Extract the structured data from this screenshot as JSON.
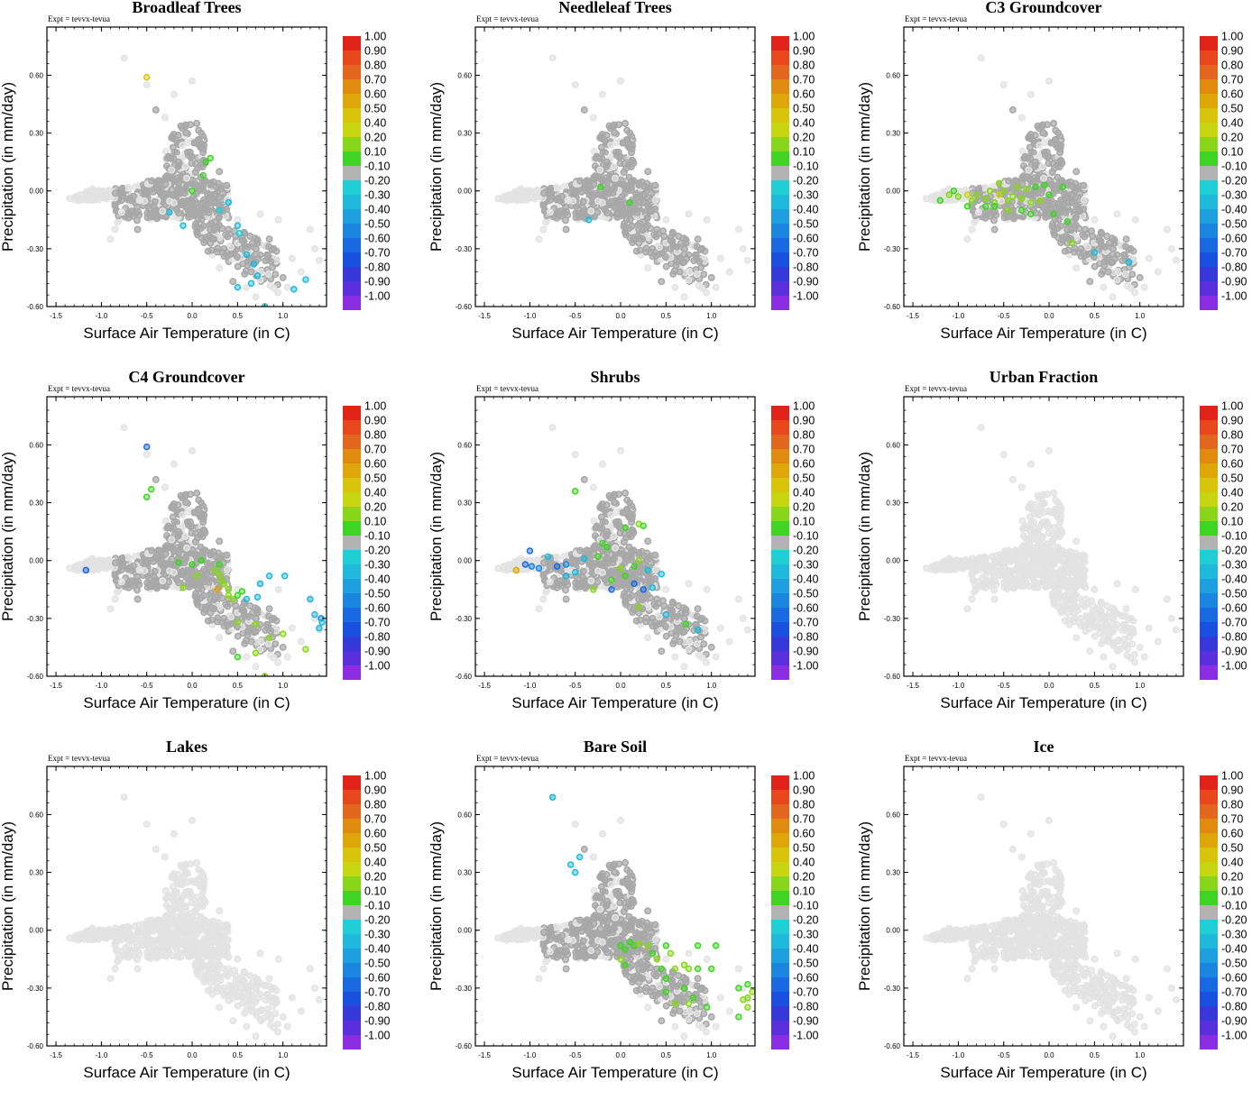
{
  "figure": {
    "expt_label": "Expt = tevvx-tevua",
    "xlabel": "Surface Air Temperature (in C)",
    "ylabel": "Precipitation (in mm/day)"
  },
  "chart_data": {
    "type": "scatter",
    "xlim": [
      -1.6,
      1.48
    ],
    "ylim": [
      -0.6,
      0.85
    ],
    "x_ticks": [
      -1.5,
      -1.0,
      -0.5,
      0.0,
      0.5,
      1.0
    ],
    "x_tick_labels": [
      "-1.5",
      "-1.0",
      "-0.5",
      "0.0",
      "0.5",
      "1.0"
    ],
    "y_ticks": [
      -0.6,
      -0.3,
      0.0,
      0.3,
      0.6
    ],
    "y_tick_labels": [
      "-0.60",
      "-0.30",
      "0.00",
      "0.30",
      "0.60"
    ],
    "grid": false,
    "colorbar": {
      "labels": [
        "1.00",
        "0.90",
        "0.80",
        "0.70",
        "0.60",
        "0.50",
        "0.40",
        "0.20",
        "0.10",
        "-0.10",
        "-0.20",
        "-0.30",
        "-0.40",
        "-0.50",
        "-0.60",
        "-0.70",
        "-0.80",
        "-0.90",
        "-1.00"
      ],
      "colors": [
        "#e2231a",
        "#e8461b",
        "#e2661d",
        "#e08a0f",
        "#dfa60a",
        "#d9c40c",
        "#c8d612",
        "#88d61a",
        "#3fd424",
        "#b3b3b3",
        "#20cfd6",
        "#1fb9dc",
        "#1ea0e0",
        "#1a86e0",
        "#196ae2",
        "#1a50e0",
        "#3738da",
        "#5a2fde",
        "#8a2de3"
      ]
    },
    "panels": [
      {
        "title": "Broadleaf Trees",
        "highlight": [
          [
            -0.5,
            0.59,
            0.45
          ],
          [
            0.0,
            0.0,
            0.12
          ],
          [
            0.15,
            0.15,
            0.15
          ],
          [
            0.2,
            0.17,
            0.15
          ],
          [
            0.12,
            0.08,
            0.12
          ],
          [
            0.3,
            -0.1,
            -0.25
          ],
          [
            0.4,
            -0.06,
            -0.3
          ],
          [
            0.5,
            -0.18,
            -0.3
          ],
          [
            0.52,
            -0.22,
            -0.25
          ],
          [
            0.6,
            -0.33,
            -0.3
          ],
          [
            0.68,
            -0.38,
            -0.3
          ],
          [
            0.72,
            -0.44,
            -0.3
          ],
          [
            0.5,
            -0.5,
            -0.3
          ],
          [
            0.65,
            -0.48,
            -0.3
          ],
          [
            1.12,
            -0.51,
            -0.3
          ],
          [
            1.25,
            -0.46,
            -0.3
          ],
          [
            0.8,
            -0.6,
            -0.3
          ],
          [
            -0.25,
            -0.11,
            -0.3
          ],
          [
            -0.1,
            -0.18,
            -0.3
          ]
        ]
      },
      {
        "title": "Needleleaf Trees",
        "highlight": [
          [
            -0.22,
            0.02,
            0.12
          ],
          [
            0.1,
            -0.06,
            0.12
          ],
          [
            -0.35,
            -0.15,
            -0.35
          ]
        ]
      },
      {
        "title": "C3 Groundcover",
        "highlight": [
          [
            -1.2,
            -0.05,
            0.12
          ],
          [
            -1.1,
            -0.02,
            0.3
          ],
          [
            -1.05,
            0.0,
            0.12
          ],
          [
            -1.0,
            -0.03,
            0.3
          ],
          [
            -0.9,
            -0.02,
            0.4
          ],
          [
            -0.85,
            -0.05,
            0.3
          ],
          [
            -0.8,
            -0.02,
            0.25
          ],
          [
            -0.7,
            -0.04,
            0.3
          ],
          [
            -0.65,
            0.0,
            0.3
          ],
          [
            -0.6,
            -0.06,
            0.3
          ],
          [
            -0.55,
            -0.02,
            0.35
          ],
          [
            -0.5,
            0.0,
            0.3
          ],
          [
            -0.45,
            -0.05,
            0.3
          ],
          [
            -0.4,
            -0.03,
            0.3
          ],
          [
            -0.35,
            0.02,
            0.3
          ],
          [
            -0.3,
            -0.04,
            0.3
          ],
          [
            -0.25,
            0.01,
            0.3
          ],
          [
            -0.2,
            -0.06,
            0.3
          ],
          [
            -0.15,
            0.02,
            0.12
          ],
          [
            -0.1,
            -0.05,
            0.3
          ],
          [
            -0.05,
            0.03,
            0.12
          ],
          [
            0.0,
            -0.02,
            0.12
          ],
          [
            0.15,
            0.02,
            0.12
          ],
          [
            -0.6,
            -0.08,
            0.12
          ],
          [
            -0.7,
            -0.08,
            0.12
          ],
          [
            -0.45,
            -0.1,
            0.3
          ],
          [
            -0.3,
            -0.1,
            0.12
          ],
          [
            -0.2,
            -0.12,
            0.12
          ],
          [
            0.05,
            -0.12,
            0.12
          ],
          [
            0.2,
            -0.16,
            0.12
          ],
          [
            0.25,
            -0.27,
            0.3
          ],
          [
            0.5,
            -0.32,
            -0.35
          ],
          [
            0.88,
            -0.37,
            -0.3
          ],
          [
            -0.55,
            0.04,
            0.3
          ],
          [
            -0.9,
            -0.08,
            0.12
          ]
        ]
      },
      {
        "title": "C4 Groundcover",
        "highlight": [
          [
            -1.17,
            -0.05,
            -0.6
          ],
          [
            -0.5,
            0.59,
            -0.6
          ],
          [
            -0.45,
            0.37,
            0.12
          ],
          [
            -0.5,
            0.33,
            0.12
          ],
          [
            0.0,
            -0.02,
            0.12
          ],
          [
            -0.15,
            -0.01,
            0.12
          ],
          [
            0.1,
            0.0,
            0.12
          ],
          [
            0.3,
            -0.02,
            0.12
          ],
          [
            0.25,
            -0.05,
            0.3
          ],
          [
            0.3,
            -0.07,
            0.3
          ],
          [
            0.32,
            -0.1,
            0.3
          ],
          [
            0.35,
            -0.12,
            0.3
          ],
          [
            0.4,
            -0.15,
            0.3
          ],
          [
            0.28,
            -0.15,
            0.6
          ],
          [
            0.45,
            -0.2,
            0.3
          ],
          [
            0.5,
            -0.18,
            0.12
          ],
          [
            0.55,
            -0.16,
            0.12
          ],
          [
            0.6,
            -0.2,
            -0.3
          ],
          [
            0.72,
            -0.19,
            -0.3
          ],
          [
            0.85,
            -0.08,
            -0.3
          ],
          [
            1.02,
            -0.08,
            -0.3
          ],
          [
            0.75,
            -0.12,
            -0.3
          ],
          [
            0.4,
            -0.18,
            0.3
          ],
          [
            0.5,
            -0.32,
            0.3
          ],
          [
            0.7,
            -0.33,
            0.3
          ],
          [
            0.85,
            -0.4,
            0.3
          ],
          [
            0.7,
            -0.48,
            0.3
          ],
          [
            0.5,
            -0.5,
            0.12
          ],
          [
            1.0,
            -0.38,
            0.3
          ],
          [
            1.25,
            -0.46,
            0.3
          ],
          [
            1.3,
            -0.2,
            -0.3
          ],
          [
            1.35,
            -0.28,
            -0.3
          ],
          [
            1.42,
            -0.3,
            -0.5
          ],
          [
            1.43,
            -0.32,
            -0.3
          ],
          [
            1.4,
            -0.35,
            -0.3
          ],
          [
            -0.1,
            -0.14,
            0.3
          ],
          [
            0.05,
            -0.08,
            0.3
          ],
          [
            0.8,
            -0.6,
            0.3
          ]
        ]
      },
      {
        "title": "Shrubs",
        "highlight": [
          [
            -1.15,
            -0.05,
            0.6
          ],
          [
            -1.0,
            0.05,
            -0.6
          ],
          [
            -1.05,
            -0.02,
            -0.6
          ],
          [
            -0.98,
            -0.03,
            -0.5
          ],
          [
            -0.9,
            -0.04,
            -0.5
          ],
          [
            -0.8,
            0.02,
            -0.3
          ],
          [
            -0.7,
            -0.03,
            -0.6
          ],
          [
            -0.6,
            -0.02,
            -0.5
          ],
          [
            -0.5,
            -0.06,
            -0.3
          ],
          [
            -0.4,
            0.01,
            -0.3
          ],
          [
            -0.5,
            0.36,
            0.12
          ],
          [
            -0.3,
            -0.15,
            0.3
          ],
          [
            -0.25,
            0.02,
            0.12
          ],
          [
            -0.15,
            0.07,
            0.12
          ],
          [
            -0.1,
            -0.1,
            0.12
          ],
          [
            0.0,
            -0.04,
            0.3
          ],
          [
            0.05,
            -0.08,
            0.12
          ],
          [
            0.15,
            -0.03,
            0.12
          ],
          [
            0.2,
            0.19,
            0.3
          ],
          [
            0.25,
            0.18,
            0.12
          ],
          [
            0.05,
            0.17,
            0.12
          ],
          [
            0.2,
            0.0,
            0.3
          ],
          [
            0.3,
            -0.05,
            -0.3
          ],
          [
            0.45,
            -0.07,
            -0.3
          ],
          [
            0.35,
            -0.14,
            -0.3
          ],
          [
            0.2,
            -0.24,
            0.3
          ],
          [
            0.5,
            -0.28,
            -0.3
          ],
          [
            0.72,
            -0.33,
            0.12
          ],
          [
            0.85,
            -0.36,
            -0.3
          ],
          [
            -0.1,
            -0.15,
            -0.6
          ],
          [
            0.25,
            -0.15,
            -0.6
          ],
          [
            0.15,
            -0.12,
            -0.6
          ],
          [
            -0.6,
            -0.08,
            -0.3
          ],
          [
            -0.2,
            0.09,
            0.12
          ]
        ]
      },
      {
        "title": "Urban Fraction",
        "highlight": []
      },
      {
        "title": "Lakes",
        "highlight": []
      },
      {
        "title": "Bare Soil",
        "highlight": [
          [
            -0.75,
            0.69,
            -0.3
          ],
          [
            -0.45,
            0.38,
            -0.3
          ],
          [
            -0.55,
            0.34,
            -0.3
          ],
          [
            -0.5,
            0.3,
            -0.3
          ],
          [
            0.0,
            -0.08,
            0.12
          ],
          [
            0.05,
            -0.1,
            0.12
          ],
          [
            0.1,
            -0.06,
            0.12
          ],
          [
            0.15,
            -0.08,
            0.12
          ],
          [
            0.2,
            -0.07,
            0.3
          ],
          [
            0.3,
            -0.08,
            0.3
          ],
          [
            0.35,
            -0.12,
            0.12
          ],
          [
            0.4,
            -0.15,
            0.3
          ],
          [
            0.45,
            -0.2,
            0.12
          ],
          [
            0.5,
            -0.08,
            0.12
          ],
          [
            0.55,
            -0.12,
            0.3
          ],
          [
            0.6,
            -0.2,
            0.3
          ],
          [
            0.7,
            -0.18,
            0.3
          ],
          [
            0.75,
            -0.2,
            0.3
          ],
          [
            0.85,
            -0.2,
            0.12
          ],
          [
            1.05,
            -0.08,
            0.12
          ],
          [
            1.0,
            -0.2,
            0.12
          ],
          [
            0.85,
            -0.08,
            0.12
          ],
          [
            0.5,
            -0.25,
            0.12
          ],
          [
            0.7,
            -0.3,
            0.12
          ],
          [
            0.8,
            -0.35,
            0.12
          ],
          [
            0.75,
            -0.38,
            0.3
          ],
          [
            0.6,
            -0.38,
            0.3
          ],
          [
            0.95,
            -0.4,
            0.12
          ],
          [
            1.3,
            -0.3,
            0.12
          ],
          [
            1.4,
            -0.28,
            0.12
          ],
          [
            1.45,
            -0.32,
            0.3
          ],
          [
            1.4,
            -0.35,
            0.3
          ],
          [
            1.4,
            -0.4,
            0.3
          ],
          [
            0.0,
            -0.15,
            0.3
          ],
          [
            0.05,
            -0.18,
            0.12
          ],
          [
            0.5,
            -0.32,
            0.12
          ],
          [
            1.3,
            -0.45,
            0.12
          ],
          [
            1.35,
            -0.36,
            0.3
          ]
        ]
      },
      {
        "title": "Ice",
        "highlight": []
      }
    ]
  }
}
